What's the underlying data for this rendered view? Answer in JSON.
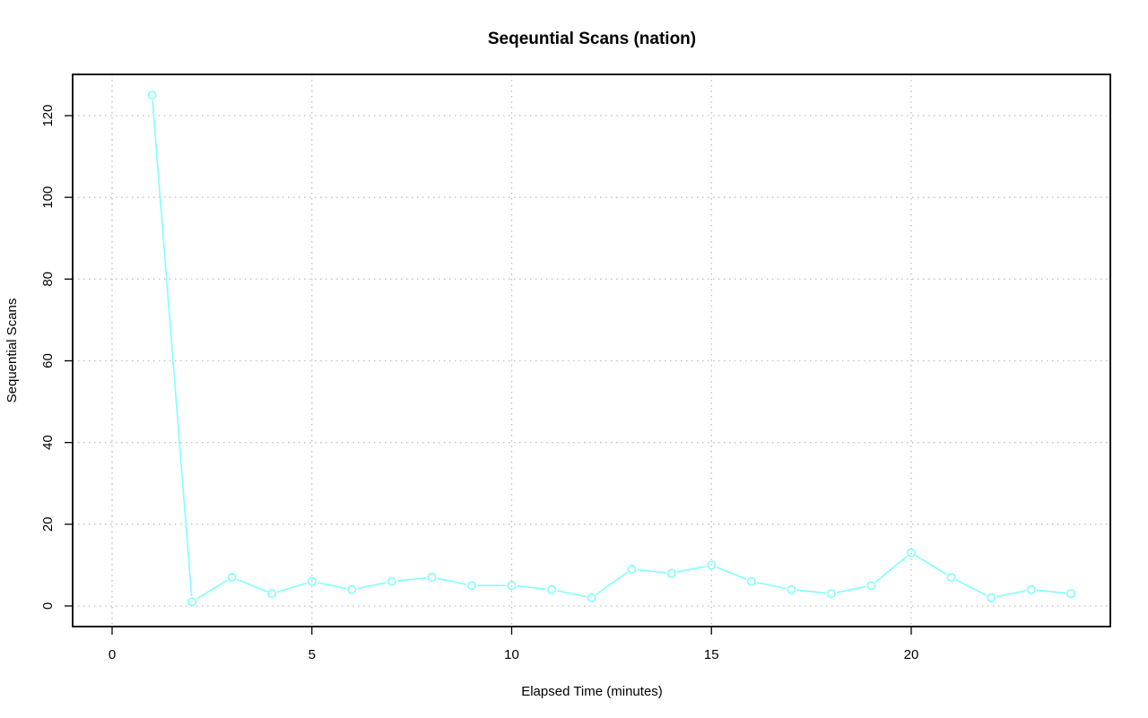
{
  "chart_data": {
    "type": "line",
    "title": "Seqeuntial Scans (nation)",
    "xlabel": "Elapsed Time (minutes)",
    "ylabel": "Sequential Scans",
    "xlim": [
      -1,
      25
    ],
    "ylim": [
      -5,
      130
    ],
    "xticks": [
      0,
      5,
      10,
      15,
      20
    ],
    "yticks": [
      0,
      20,
      40,
      60,
      80,
      100,
      120
    ],
    "grid": true,
    "color": "#7fffff",
    "series": [
      {
        "x": [
          1,
          2,
          3,
          4,
          5,
          6,
          7,
          8,
          9,
          10,
          11,
          12,
          13,
          14,
          15,
          16,
          17,
          18,
          19,
          20,
          21,
          22,
          23,
          24
        ],
        "values": [
          125,
          1,
          7,
          3,
          6,
          4,
          6,
          7,
          5,
          5,
          4,
          2,
          9,
          8,
          10,
          6,
          4,
          3,
          5,
          13,
          7,
          2,
          4,
          3
        ]
      }
    ]
  }
}
